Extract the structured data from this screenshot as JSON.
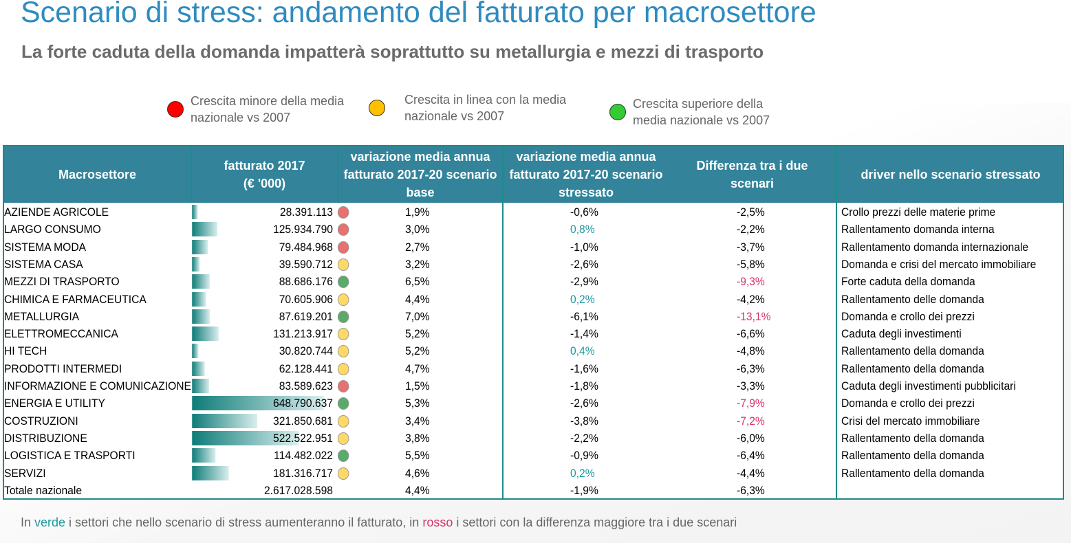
{
  "title": "Scenario di stress: andamento del fatturato per macrosettore",
  "subtitle": "La forte caduta della domanda impatterà soprattutto su metallurgia e mezzi di trasporto",
  "legend": [
    {
      "label": "Crescita minore della media nazionale vs 2007",
      "color": "#ff0000"
    },
    {
      "label": "Crescita in linea  con la media nazionale vs 2007",
      "color": "#ffc000"
    },
    {
      "label": "Crescita superiore della media nazionale vs 2007",
      "color": "#33cc33"
    }
  ],
  "colors": {
    "header": "#33849b",
    "border": "#1f8a8a",
    "green_text": "#1a9aa0",
    "red_text": "#d6336c",
    "dot_red": "#e87070",
    "dot_yellow": "#ffd966",
    "dot_green": "#5aab6a"
  },
  "headers": [
    "Macrosettore",
    "fatturato 2017\n(€ '000)",
    "variazione media annua fatturato 2017-20 scenario base",
    "variazione media annua fatturato 2017-20 scenario stressato",
    "Differenza tra i due scenari",
    "driver nello scenario stressato"
  ],
  "rows": [
    {
      "name": "AZIENDE AGRICOLE",
      "value": 28391113,
      "fatturato": "28.391.113",
      "dot": "red",
      "base": "1,9%",
      "stress": "-0,6%",
      "stress_hl": "",
      "diff": "-2,5%",
      "diff_hl": "",
      "driver": "Crollo prezzi delle materie prime"
    },
    {
      "name": "LARGO CONSUMO",
      "value": 125934790,
      "fatturato": "125.934.790",
      "dot": "red",
      "base": "3,0%",
      "stress": "0,8%",
      "stress_hl": "green",
      "diff": "-2,2%",
      "diff_hl": "",
      "driver": "Rallentamento domanda interna"
    },
    {
      "name": "SISTEMA MODA",
      "value": 79484968,
      "fatturato": "79.484.968",
      "dot": "red",
      "base": "2,7%",
      "stress": "-1,0%",
      "stress_hl": "",
      "diff": "-3,7%",
      "diff_hl": "",
      "driver": "Rallentamento domanda internazionale"
    },
    {
      "name": "SISTEMA CASA",
      "value": 39590712,
      "fatturato": "39.590.712",
      "dot": "yellow",
      "base": "3,2%",
      "stress": "-2,6%",
      "stress_hl": "",
      "diff": "-5,8%",
      "diff_hl": "",
      "driver": "Domanda e crisi del mercato immobiliare"
    },
    {
      "name": "MEZZI DI TRASPORTO",
      "value": 88686176,
      "fatturato": "88.686.176",
      "dot": "green",
      "base": "6,5%",
      "stress": "-2,9%",
      "stress_hl": "",
      "diff": "-9,3%",
      "diff_hl": "red",
      "driver": "Forte caduta della domanda"
    },
    {
      "name": "CHIMICA E FARMACEUTICA",
      "value": 70605906,
      "fatturato": "70.605.906",
      "dot": "yellow",
      "base": "4,4%",
      "stress": "0,2%",
      "stress_hl": "green",
      "diff": "-4,2%",
      "diff_hl": "",
      "driver": "Rallentamento delle domanda"
    },
    {
      "name": "METALLURGIA",
      "value": 87619201,
      "fatturato": "87.619.201",
      "dot": "green",
      "base": "7,0%",
      "stress": "-6,1%",
      "stress_hl": "",
      "diff": "-13,1%",
      "diff_hl": "red",
      "driver": "Domanda e crollo dei prezzi"
    },
    {
      "name": "ELETTROMECCANICA",
      "value": 131213917,
      "fatturato": "131.213.917",
      "dot": "yellow",
      "base": "5,2%",
      "stress": "-1,4%",
      "stress_hl": "",
      "diff": "-6,6%",
      "diff_hl": "",
      "driver": "Caduta degli investimenti"
    },
    {
      "name": "HI TECH",
      "value": 30820744,
      "fatturato": "30.820.744",
      "dot": "yellow",
      "base": "5,2%",
      "stress": "0,4%",
      "stress_hl": "green",
      "diff": "-4,8%",
      "diff_hl": "",
      "driver": "Rallentamento della domanda"
    },
    {
      "name": "PRODOTTI INTERMEDI",
      "value": 62128441,
      "fatturato": "62.128.441",
      "dot": "yellow",
      "base": "4,7%",
      "stress": "-1,6%",
      "stress_hl": "",
      "diff": "-6,3%",
      "diff_hl": "",
      "driver": "Rallentamento della domanda"
    },
    {
      "name": "INFORMAZIONE E COMUNICAZIONE",
      "value": 83589623,
      "fatturato": "83.589.623",
      "dot": "red",
      "base": "1,5%",
      "stress": "-1,8%",
      "stress_hl": "",
      "diff": "-3,3%",
      "diff_hl": "",
      "driver": "Caduta degli investimenti pubblicitari"
    },
    {
      "name": "ENERGIA E UTILITY",
      "value": 648790637,
      "fatturato": "648.790.637",
      "dot": "green",
      "base": "5,3%",
      "stress": "-2,6%",
      "stress_hl": "",
      "diff": "-7,9%",
      "diff_hl": "red",
      "driver": "Domanda e crollo dei prezzi"
    },
    {
      "name": "COSTRUZIONI",
      "value": 321850681,
      "fatturato": "321.850.681",
      "dot": "yellow",
      "base": "3,4%",
      "stress": "-3,8%",
      "stress_hl": "",
      "diff": "-7,2%",
      "diff_hl": "red",
      "driver": "Crisi del mercato immobiliare"
    },
    {
      "name": "DISTRIBUZIONE",
      "value": 522522951,
      "fatturato": "522.522.951",
      "dot": "yellow",
      "base": "3,8%",
      "stress": "-2,2%",
      "stress_hl": "",
      "diff": "-6,0%",
      "diff_hl": "",
      "driver": "Rallentamento della domanda"
    },
    {
      "name": "LOGISTICA E TRASPORTI",
      "value": 114482022,
      "fatturato": "114.482.022",
      "dot": "green",
      "base": "5,5%",
      "stress": "-0,9%",
      "stress_hl": "",
      "diff": "-6,4%",
      "diff_hl": "",
      "driver": "Rallentamento della domanda"
    },
    {
      "name": "SERVIZI",
      "value": 181316717,
      "fatturato": "181.316.717",
      "dot": "yellow",
      "base": "4,6%",
      "stress": "0,2%",
      "stress_hl": "green",
      "diff": "-4,4%",
      "diff_hl": "",
      "driver": "Rallentamento della domanda"
    }
  ],
  "total": {
    "name": "Totale nazionale",
    "fatturato": "2.617.028.598",
    "base": "4,4%",
    "stress": "-1,9%",
    "diff": "-6,3%"
  },
  "footer": {
    "p1": "In ",
    "verde": "verde",
    "p2": " i settori che nello scenario di stress aumenteranno il fatturato, in ",
    "rosso": "rosso",
    "p3": " i settori con la differenza maggiore tra i due scenari"
  }
}
